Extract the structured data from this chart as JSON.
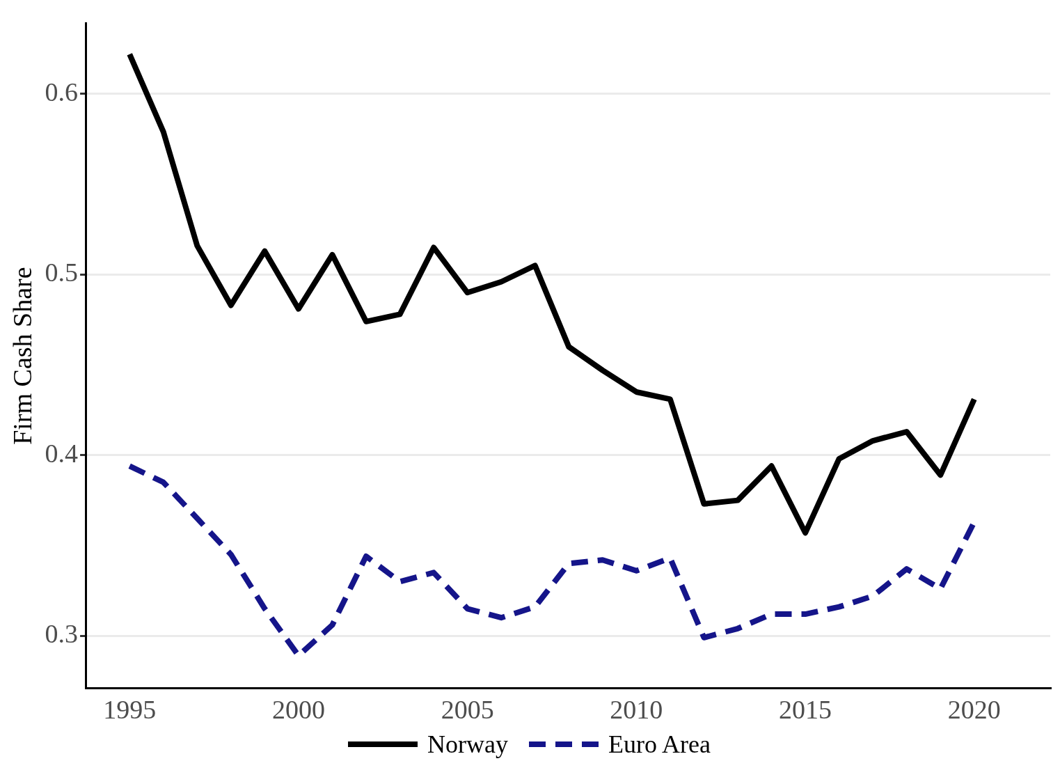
{
  "chart_data": {
    "type": "line",
    "ylabel": "Firm Cash Share",
    "x": [
      1995,
      1996,
      1997,
      1998,
      1999,
      2000,
      2001,
      2002,
      2003,
      2004,
      2005,
      2006,
      2007,
      2008,
      2009,
      2010,
      2011,
      2012,
      2013,
      2014,
      2015,
      2016,
      2017,
      2018,
      2019,
      2020
    ],
    "series": [
      {
        "name": "Norway",
        "color": "#000000",
        "line_style": "solid",
        "values": [
          0.622,
          0.579,
          0.516,
          0.483,
          0.513,
          0.481,
          0.511,
          0.474,
          0.478,
          0.515,
          0.49,
          0.496,
          0.505,
          0.46,
          0.447,
          0.435,
          0.431,
          0.373,
          0.375,
          0.394,
          0.357,
          0.398,
          0.408,
          0.413,
          0.389,
          0.431
        ]
      },
      {
        "name": "Euro Area",
        "color": "#15158a",
        "line_style": "dashed",
        "values": [
          0.394,
          0.385,
          0.365,
          0.345,
          0.315,
          0.289,
          0.306,
          0.344,
          0.33,
          0.335,
          0.315,
          0.31,
          0.316,
          0.34,
          0.342,
          0.336,
          0.343,
          0.299,
          0.304,
          0.312,
          0.312,
          0.316,
          0.322,
          0.337,
          0.326,
          0.363
        ]
      }
    ],
    "xlim": [
      1993.7,
      2022.25
    ],
    "ylim": [
      0.271,
      0.639
    ],
    "xticks": [
      1995,
      2000,
      2005,
      2010,
      2015,
      2020
    ],
    "yticks": [
      0.3,
      0.4,
      0.5,
      0.6
    ],
    "grid": "y",
    "legend": "bottom",
    "marker": "none"
  }
}
